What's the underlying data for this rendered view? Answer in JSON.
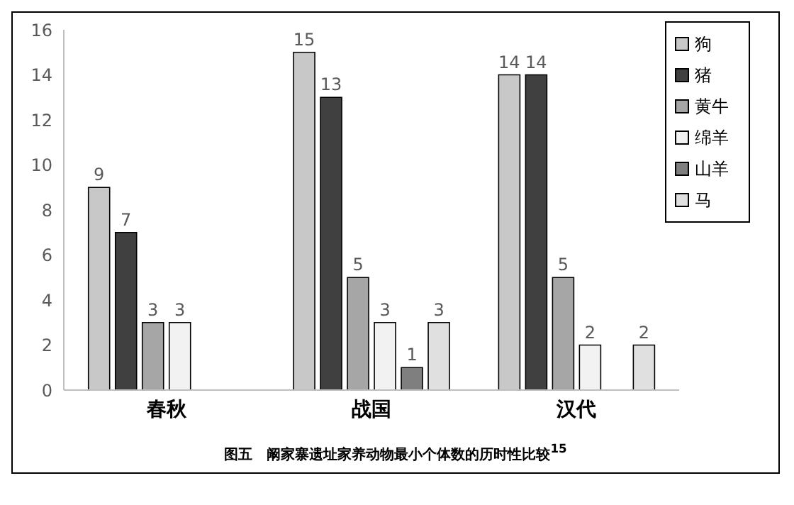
{
  "chart_data": {
    "type": "bar",
    "categories": [
      "春秋",
      "战国",
      "汉代"
    ],
    "series": [
      {
        "name": "狗",
        "color": "#c8c8c8",
        "values": [
          9,
          15,
          14
        ]
      },
      {
        "name": "猪",
        "color": "#404040",
        "values": [
          7,
          13,
          14
        ]
      },
      {
        "name": "黄牛",
        "color": "#a6a6a6",
        "values": [
          3,
          5,
          5
        ]
      },
      {
        "name": "绵羊",
        "color": "#f2f2f2",
        "values": [
          3,
          3,
          2
        ]
      },
      {
        "name": "山羊",
        "color": "#7f7f7f",
        "values": [
          null,
          1,
          null
        ]
      },
      {
        "name": "马",
        "color": "#e0e0e0",
        "values": [
          null,
          3,
          2
        ]
      }
    ],
    "ylim": [
      0,
      16
    ],
    "yticks": [
      0,
      2,
      4,
      6,
      8,
      10,
      12,
      14,
      16
    ],
    "legend": "top right",
    "data_labels": true,
    "annotations": [
      "图五　阚家寨遗址家养动物最小个体数的历时性比较$^{15}$"
    ]
  }
}
